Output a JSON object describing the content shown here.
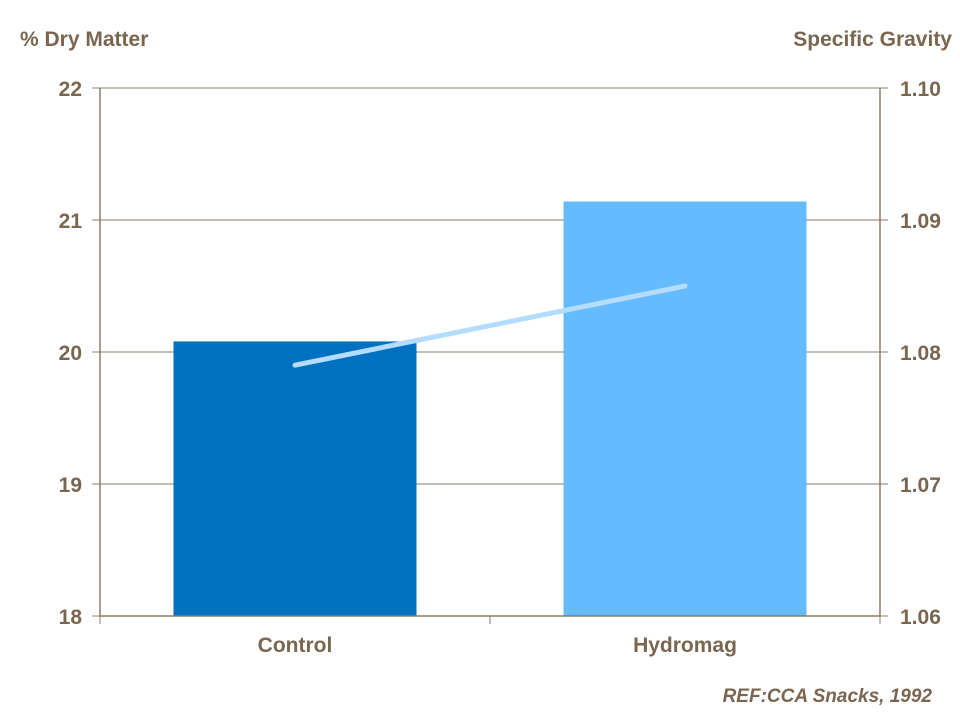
{
  "chart_data": {
    "type": "bar+line",
    "categories": [
      "Control",
      "Hydromag"
    ],
    "left_axis": {
      "label": "% Dry Matter",
      "ylim": [
        18,
        22
      ],
      "ticks": [
        "18",
        "19",
        "20",
        "21",
        "22"
      ]
    },
    "right_axis": {
      "label": "Specific Gravity",
      "ylim": [
        1.06,
        1.1
      ],
      "ticks": [
        "1.06",
        "1.07",
        "1.08",
        "1.09",
        "1.10"
      ]
    },
    "bars": {
      "axis": "left",
      "values": [
        20.08,
        21.14
      ],
      "colors": [
        "#0070c0",
        "#66bbff"
      ]
    },
    "line": {
      "axis": "right",
      "values": [
        1.079,
        1.085
      ],
      "color": "#b3dcff"
    },
    "grid": true,
    "annotation": "REF:CCA Snacks, 1992",
    "text_color": "#7a6650"
  }
}
